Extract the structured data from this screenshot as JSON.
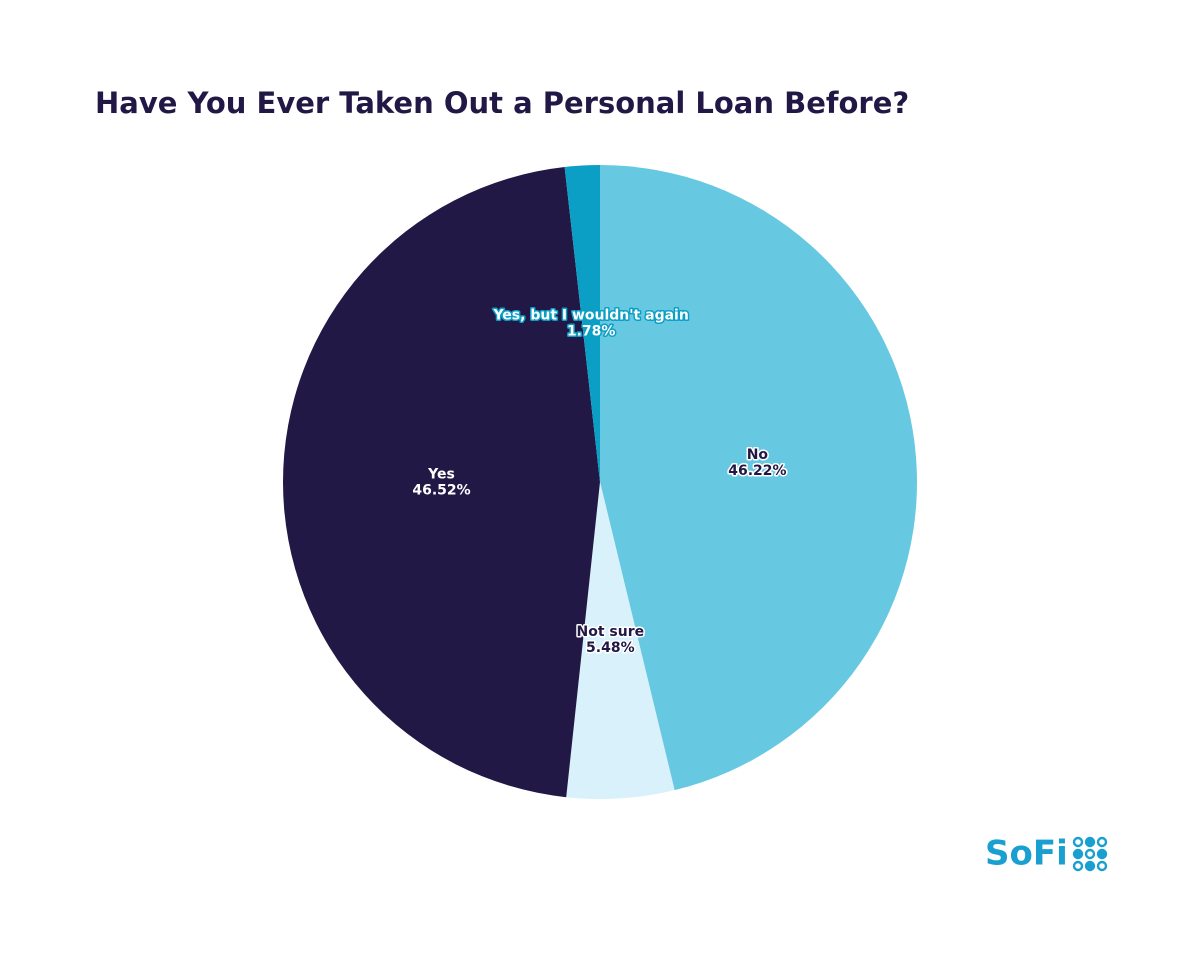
{
  "chart_data": {
    "type": "pie",
    "title": "Have You Ever Taken Out a Personal Loan Before?",
    "categories": [
      "No",
      "Not sure",
      "Yes",
      "Yes, but I wouldn't again"
    ],
    "values": [
      46.22,
      5.48,
      46.52,
      1.78
    ],
    "value_labels": [
      "46.22%",
      "5.48%",
      "46.52%",
      "1.78%"
    ],
    "colors": [
      "#67c8e2",
      "#d8f1fa",
      "#221845",
      "#0b9fc6"
    ]
  },
  "brand": "SoFi"
}
